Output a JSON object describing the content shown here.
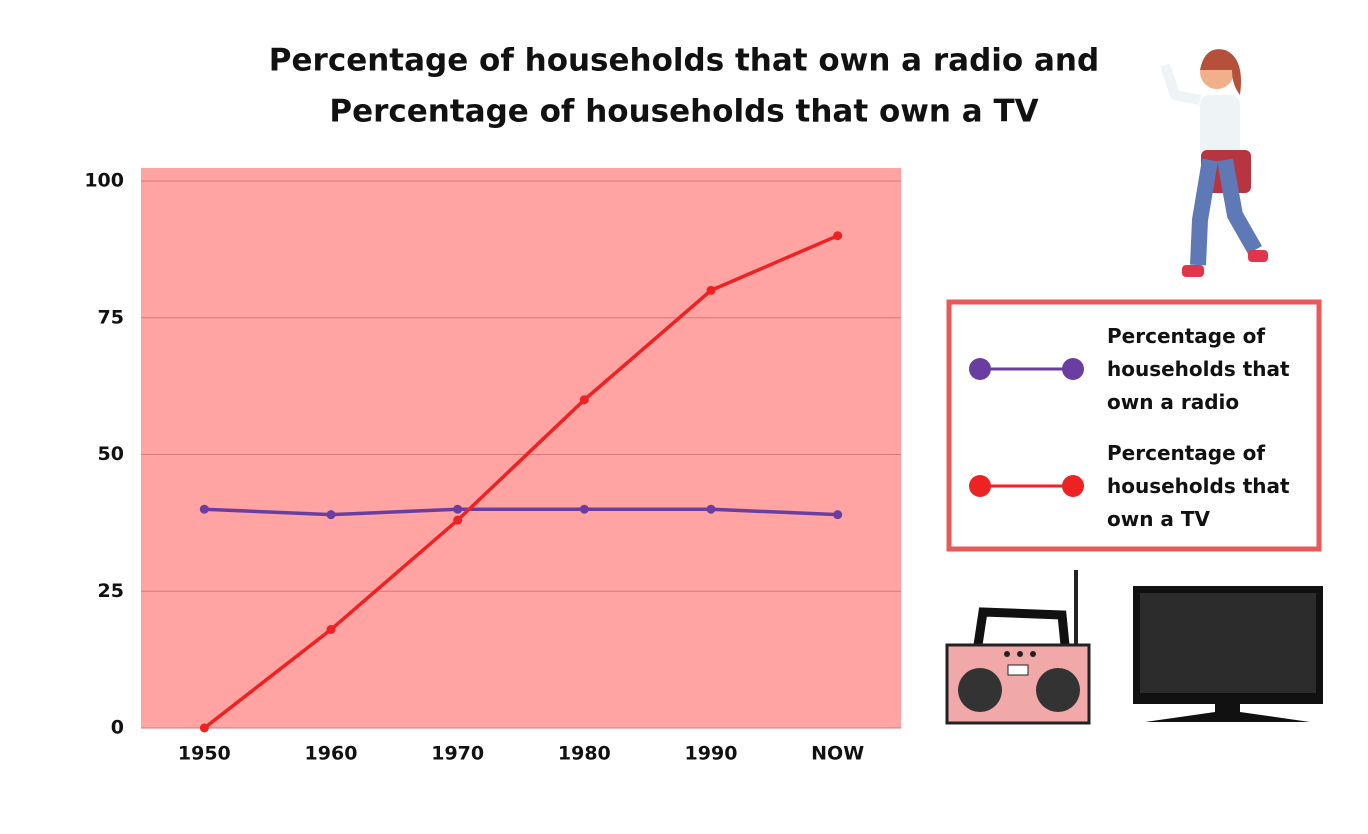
{
  "chart_data": {
    "type": "line",
    "title": [
      "Percentage of households that own a radio and",
      "Percentage of households that own a TV"
    ],
    "categories": [
      "1950",
      "1960",
      "1970",
      "1980",
      "1990",
      "NOW"
    ],
    "series": [
      {
        "name": "Percentage of households that own a radio",
        "color": "#6a3ea1",
        "values": [
          40,
          39,
          40,
          40,
          40,
          39
        ]
      },
      {
        "name": "Percentage of households that own a TV",
        "color": "#ee2222",
        "values": [
          0,
          18,
          38,
          60,
          80,
          90
        ]
      }
    ],
    "ylim": [
      0,
      100
    ],
    "yticks": [
      0,
      25,
      50,
      75,
      100
    ],
    "grid": true
  }
}
